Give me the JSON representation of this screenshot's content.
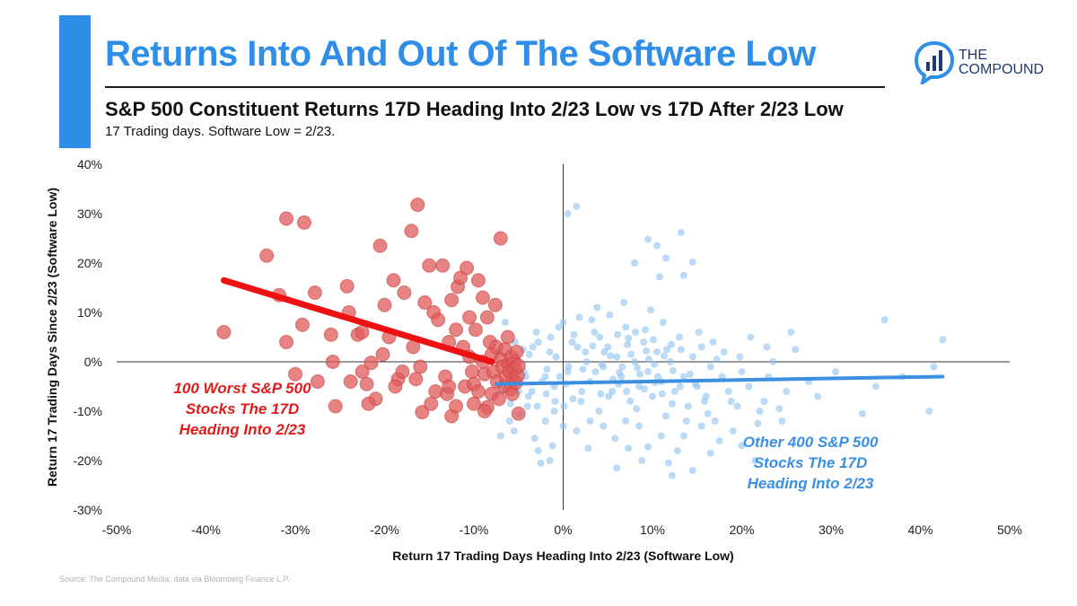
{
  "header": {
    "title": "Returns Into And Out Of The Software Low",
    "subtitle": "S&P 500 Constituent Returns 17D Heading Into 2/23 Low vs 17D After 2/23 Low",
    "note": "17 Trading days. Software Low = 2/23.",
    "accent_color": "#2f8ee8"
  },
  "logo": {
    "line1": "THE",
    "line2": "COMPOUND",
    "icon": "chat-bubble-bar-chart-icon"
  },
  "source": "Source: The Compound Media, data via Bloomberg Finance L.P.",
  "chart_data": {
    "type": "scatter",
    "title": "S&P 500 Constituent Returns 17D Heading Into 2/23 Low vs 17D After 2/23 Low",
    "xlabel": "Return 17 Trading Days Heading Into 2/23 (Software Low)",
    "ylabel": "Return 17 Trading Days Since 2/23 (Software Low)",
    "xlim": [
      -50,
      50
    ],
    "ylim": [
      -30,
      40
    ],
    "x_ticks": [
      -50,
      -40,
      -30,
      -20,
      -10,
      0,
      10,
      20,
      30,
      40,
      50
    ],
    "y_ticks": [
      -30,
      -20,
      -10,
      0,
      10,
      20,
      30,
      40
    ],
    "x_tick_labels": [
      "-50%",
      "-40%",
      "-30%",
      "-20%",
      "-10%",
      "0%",
      "10%",
      "20%",
      "30%",
      "40%",
      "50%"
    ],
    "y_tick_labels": [
      "-30%",
      "-20%",
      "-10%",
      "0%",
      "10%",
      "20%",
      "30%",
      "40%"
    ],
    "series": [
      {
        "name": "100 Worst S&P 500 Stocks The 17D Heading Into 2/23",
        "label_lines": [
          "100 Worst S&P 500",
          "Stocks The 17D",
          "Heading Into 2/23"
        ],
        "color": "#e05a5a",
        "line_color": "#ee1111",
        "trend": [
          [
            -38,
            16.5
          ],
          [
            -8,
            0
          ]
        ],
        "points": [
          [
            -38,
            6
          ],
          [
            -33.2,
            21.5
          ],
          [
            -31.8,
            13.5
          ],
          [
            -31,
            29
          ],
          [
            -31,
            4
          ],
          [
            -29,
            28.2
          ],
          [
            -29.2,
            7.5
          ],
          [
            -27.8,
            14
          ],
          [
            -26,
            5.5
          ],
          [
            -25.8,
            0
          ],
          [
            -24.2,
            15.3
          ],
          [
            -24,
            10
          ],
          [
            -23.8,
            -4
          ],
          [
            -23,
            5.5
          ],
          [
            -22.5,
            -2
          ],
          [
            -22,
            -4.5
          ],
          [
            -21.5,
            -0.2
          ],
          [
            -21,
            -7.5
          ],
          [
            -20.5,
            23.5
          ],
          [
            -20,
            11.5
          ],
          [
            -19.5,
            5
          ],
          [
            -19,
            16.5
          ],
          [
            -18.5,
            -3.5
          ],
          [
            -18,
            -2
          ],
          [
            -17.8,
            14
          ],
          [
            -17,
            26.5
          ],
          [
            -16.8,
            3
          ],
          [
            -16.3,
            31.8
          ],
          [
            -16,
            -1
          ],
          [
            -15.8,
            -10.2
          ],
          [
            -15.5,
            12
          ],
          [
            -15,
            19.5
          ],
          [
            -14.5,
            10
          ],
          [
            -14.3,
            -6
          ],
          [
            -14,
            8.5
          ],
          [
            -13.5,
            19.5
          ],
          [
            -13.2,
            -3
          ],
          [
            -13,
            -6.5
          ],
          [
            -12.8,
            4
          ],
          [
            -12.5,
            12.5
          ],
          [
            -12.5,
            -11
          ],
          [
            -12,
            6.5
          ],
          [
            -11.8,
            15.2
          ],
          [
            -11.5,
            17
          ],
          [
            -11.2,
            3
          ],
          [
            -11,
            -5
          ],
          [
            -10.8,
            19
          ],
          [
            -10.5,
            9
          ],
          [
            -10.5,
            1
          ],
          [
            -10.2,
            -2
          ],
          [
            -10,
            -4.5
          ],
          [
            -10,
            -8.5
          ],
          [
            -9.8,
            6.5
          ],
          [
            -9.5,
            16.5
          ],
          [
            -9.5,
            -6
          ],
          [
            -9,
            13
          ],
          [
            -9,
            0
          ],
          [
            -8.8,
            -2.5
          ],
          [
            -8.5,
            9
          ],
          [
            -8.5,
            -9.2
          ],
          [
            -8.2,
            4
          ],
          [
            -8,
            -6.5
          ],
          [
            -8,
            1.5
          ],
          [
            -7.8,
            -2
          ],
          [
            -7.6,
            11.5
          ],
          [
            -7.5,
            3
          ],
          [
            -7.4,
            -4
          ],
          [
            -7.2,
            -7.5
          ],
          [
            -7,
            25
          ],
          [
            -7,
            0.5
          ],
          [
            -6.8,
            -1
          ],
          [
            -6.6,
            -5
          ],
          [
            -6.5,
            2.5
          ],
          [
            -6.4,
            -3
          ],
          [
            -6.2,
            5
          ],
          [
            -6.1,
            -0.5
          ],
          [
            -6,
            -2
          ],
          [
            -5.9,
            -5.5
          ],
          [
            -5.8,
            1
          ],
          [
            -5.7,
            -6.5
          ],
          [
            -5.6,
            -3.5
          ],
          [
            -5.5,
            0
          ],
          [
            -5.4,
            -1.5
          ],
          [
            -5.3,
            -4.2
          ],
          [
            -5.2,
            2
          ],
          [
            -5.1,
            -2.8
          ],
          [
            -5,
            -0.8
          ],
          [
            -5,
            -10.5
          ],
          [
            -12.8,
            -5
          ],
          [
            -14.8,
            -8.5
          ],
          [
            -16.5,
            -3.5
          ],
          [
            -18.8,
            -5
          ],
          [
            -20.2,
            1.5
          ],
          [
            -21.8,
            -8.5
          ],
          [
            -25.5,
            -9
          ],
          [
            -27.5,
            -4
          ],
          [
            -30,
            -2.5
          ],
          [
            -12,
            -9
          ],
          [
            -8.8,
            -10
          ],
          [
            -22.5,
            6
          ]
        ]
      },
      {
        "name": "Other 400 S&P 500 Stocks The 17D Heading Into 2/23",
        "label_lines": [
          "Other 400 S&P 500",
          "Stocks The 17D",
          "Heading Into 2/23"
        ],
        "color": "#8ec1f0",
        "line_color": "#3a8fe0",
        "trend": [
          [
            -7.5,
            -4.5
          ],
          [
            42.5,
            -3
          ]
        ],
        "points": [
          [
            0.5,
            30
          ],
          [
            1.5,
            31.5
          ],
          [
            13.2,
            26.2
          ],
          [
            9.5,
            24.8
          ],
          [
            10.5,
            23.5
          ],
          [
            11.5,
            21
          ],
          [
            8,
            20
          ],
          [
            14.5,
            20.2
          ],
          [
            10.8,
            17.2
          ],
          [
            13.5,
            17.5
          ],
          [
            36,
            8.5
          ],
          [
            42.5,
            4.5
          ],
          [
            41,
            -10
          ],
          [
            33.5,
            -10.5
          ],
          [
            22,
            -10
          ],
          [
            21.5,
            -20
          ],
          [
            24.5,
            -12
          ],
          [
            20,
            -17
          ],
          [
            16.5,
            -18.5
          ],
          [
            14.5,
            -22
          ],
          [
            13.5,
            -15
          ],
          [
            12.2,
            -23
          ],
          [
            9.5,
            -17.2
          ],
          [
            6,
            -21.5
          ],
          [
            7.3,
            -17.5
          ],
          [
            -2.5,
            -20.5
          ],
          [
            -1.5,
            -20
          ],
          [
            -2.8,
            -18
          ],
          [
            -5.5,
            -14
          ],
          [
            -1,
            -10
          ],
          [
            -5.2,
            1
          ],
          [
            -4.5,
            2.5
          ],
          [
            -3.5,
            -6
          ],
          [
            -3,
            6
          ],
          [
            -2,
            -3
          ],
          [
            -1.5,
            2
          ],
          [
            -1,
            -5
          ],
          [
            0,
            8
          ],
          [
            0.5,
            -2
          ],
          [
            1,
            4
          ],
          [
            2,
            -8
          ],
          [
            2.5,
            2
          ],
          [
            3,
            -4
          ],
          [
            3.5,
            6
          ],
          [
            4,
            -10
          ],
          [
            4.5,
            -1
          ],
          [
            5,
            3
          ],
          [
            5.5,
            -6
          ],
          [
            6,
            1
          ],
          [
            6.5,
            -3
          ],
          [
            7,
            7
          ],
          [
            7.5,
            -8
          ],
          [
            8,
            0
          ],
          [
            8.5,
            -5
          ],
          [
            9,
            4
          ],
          [
            9.5,
            -2
          ],
          [
            10,
            -7
          ],
          [
            10.5,
            2
          ],
          [
            11,
            -4
          ],
          [
            11.5,
            -11
          ],
          [
            12,
            0
          ],
          [
            12.5,
            -6
          ],
          [
            13,
            5
          ],
          [
            13.5,
            -3
          ],
          [
            14,
            -9
          ],
          [
            14.5,
            1
          ],
          [
            15,
            -5
          ],
          [
            15.5,
            3
          ],
          [
            16,
            -7
          ],
          [
            16.5,
            -1
          ],
          [
            17,
            -12
          ],
          [
            18,
            2
          ],
          [
            18.5,
            -6
          ],
          [
            19,
            -14
          ],
          [
            20,
            -2
          ],
          [
            21,
            5
          ],
          [
            22.5,
            -8
          ],
          [
            23.5,
            0
          ],
          [
            25,
            -6
          ],
          [
            26,
            2.5
          ],
          [
            27.5,
            -4
          ],
          [
            28.5,
            -7
          ],
          [
            30.5,
            -2
          ],
          [
            35,
            -5
          ],
          [
            38,
            -3
          ],
          [
            41.5,
            -1
          ],
          [
            25.5,
            6
          ],
          [
            23,
            -3
          ],
          [
            19.5,
            -9
          ],
          [
            17.5,
            -16
          ],
          [
            15.5,
            -13
          ],
          [
            12.8,
            -18
          ],
          [
            11,
            -15
          ],
          [
            8.5,
            -13
          ],
          [
            7,
            -12
          ],
          [
            4.5,
            -13
          ],
          [
            3,
            -12
          ],
          [
            1.5,
            -14
          ],
          [
            0,
            -13
          ],
          [
            -2,
            -12
          ],
          [
            -4,
            -9
          ],
          [
            -5,
            -6
          ],
          [
            -4.2,
            -3
          ],
          [
            -3.8,
            1.5
          ],
          [
            -2.8,
            4
          ],
          [
            -1.8,
            -1.5
          ],
          [
            -0.8,
            1
          ],
          [
            0.3,
            -4.5
          ],
          [
            1.2,
            5.5
          ],
          [
            2.2,
            -1.5
          ],
          [
            3.2,
            8.5
          ],
          [
            4.2,
            -6.5
          ],
          [
            5.2,
            9.5
          ],
          [
            6.2,
            -4.5
          ],
          [
            7.2,
            3.5
          ],
          [
            8.2,
            -9.5
          ],
          [
            9.2,
            6.5
          ],
          [
            10.2,
            -0.5
          ],
          [
            11.2,
            8
          ],
          [
            12.2,
            -8.5
          ],
          [
            13.2,
            2.5
          ],
          [
            14.2,
            -2.5
          ],
          [
            15.2,
            6
          ],
          [
            16.2,
            -10.5
          ],
          [
            17.2,
            0.5
          ],
          [
            6.8,
            12
          ],
          [
            3.8,
            11
          ],
          [
            1.8,
            9
          ],
          [
            -0.5,
            7
          ],
          [
            9.8,
            10.5
          ],
          [
            -6.5,
            8
          ],
          [
            -7,
            -15
          ],
          [
            -6,
            -12
          ],
          [
            -3.2,
            -15.5
          ],
          [
            -1.2,
            -17
          ],
          [
            2.8,
            -17.5
          ],
          [
            5.8,
            -15.5
          ],
          [
            8.8,
            -20
          ],
          [
            11.8,
            -20.5
          ],
          [
            13.8,
            -12
          ],
          [
            2.6,
            0
          ],
          [
            3.6,
            -2
          ],
          [
            4.6,
            2
          ],
          [
            5.6,
            -3.5
          ],
          [
            6.6,
            -1
          ],
          [
            7.6,
            1.5
          ],
          [
            8.6,
            -2.5
          ],
          [
            9.6,
            0.5
          ],
          [
            10.6,
            -3
          ],
          [
            11.6,
            2.5
          ],
          [
            0.6,
            -1
          ],
          [
            1.6,
            3
          ],
          [
            -0.4,
            -3
          ],
          [
            -1.4,
            5
          ],
          [
            -2.4,
            -4
          ],
          [
            -3.4,
            3
          ],
          [
            -4.4,
            -2
          ],
          [
            -5.4,
            4
          ],
          [
            -6.4,
            -1
          ],
          [
            -7.2,
            2
          ],
          [
            4.1,
            5
          ],
          [
            5.1,
            -7
          ],
          [
            6.1,
            5.5
          ],
          [
            7.1,
            -6
          ],
          [
            8.1,
            6
          ],
          [
            9.1,
            -5.5
          ],
          [
            10.1,
            4.5
          ],
          [
            11.1,
            -6.5
          ],
          [
            12.1,
            3.5
          ],
          [
            13.1,
            -5
          ],
          [
            2.1,
            -6
          ],
          [
            1.1,
            -7.5
          ],
          [
            0.1,
            -9
          ],
          [
            -0.9,
            -8
          ],
          [
            -1.9,
            -6.5
          ],
          [
            -2.9,
            -9
          ],
          [
            -3.9,
            -7
          ],
          [
            -4.9,
            -10.5
          ],
          [
            -5.9,
            -8.5
          ],
          [
            -6.9,
            -6
          ],
          [
            3.3,
            3.2
          ],
          [
            4.3,
            -0.5
          ],
          [
            5.3,
            1.2
          ],
          [
            6.3,
            -2.2
          ],
          [
            7.3,
            4.8
          ],
          [
            8.3,
            -1.2
          ],
          [
            9.3,
            2.2
          ],
          [
            10.3,
            -4.2
          ],
          [
            11.3,
            1.2
          ],
          [
            12.3,
            -1.8
          ],
          [
            14.8,
            -4.5
          ],
          [
            15.8,
            -8
          ],
          [
            16.8,
            4
          ],
          [
            17.8,
            -3
          ],
          [
            18.8,
            -8
          ],
          [
            19.8,
            1
          ],
          [
            20.8,
            -5
          ],
          [
            21.8,
            -12.5
          ],
          [
            22.8,
            3
          ],
          [
            24.2,
            -9.5
          ]
        ]
      }
    ],
    "axes": {
      "grid": false,
      "zero_lines": true,
      "legend": "none"
    }
  }
}
